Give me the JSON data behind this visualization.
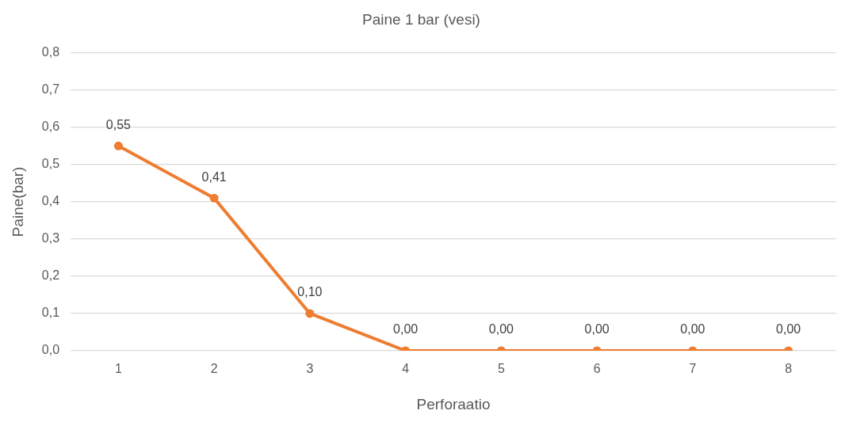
{
  "chart_data": {
    "type": "line",
    "title": "Paine 1 bar (vesi)",
    "xlabel": "Perforaatio",
    "ylabel": "Paine(bar)",
    "categories": [
      "1",
      "2",
      "3",
      "4",
      "5",
      "6",
      "7",
      "8"
    ],
    "series": [
      {
        "color": "#ed7d31",
        "values": [
          0.55,
          0.41,
          0.1,
          0,
          0,
          0,
          0,
          0
        ],
        "value_labels": [
          "0,55",
          "0,41",
          "0,10",
          "0,00",
          "0,00",
          "0,00",
          "0,00",
          "0,00"
        ]
      }
    ],
    "ylim": [
      0,
      0.8
    ],
    "yticks": [
      {
        "value": 0,
        "label": "0,0"
      },
      {
        "value": 0.1,
        "label": "0,1"
      },
      {
        "value": 0.2,
        "label": "0,2"
      },
      {
        "value": 0.3,
        "label": "0,3"
      },
      {
        "value": 0.4,
        "label": "0,4"
      },
      {
        "value": 0.5,
        "label": "0,5"
      },
      {
        "value": 0.6,
        "label": "0,6"
      },
      {
        "value": 0.7,
        "label": "0,7"
      },
      {
        "value": 0.8,
        "label": "0,8"
      }
    ],
    "grid": "y",
    "legend": false,
    "marker": "circle",
    "line_style": "solid"
  }
}
